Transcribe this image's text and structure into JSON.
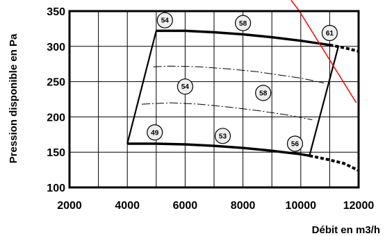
{
  "chart_data": {
    "type": "line",
    "xlabel": "Débit en m3/h",
    "ylabel": "Pression disponible en Pa",
    "xlim": [
      2000,
      12000
    ],
    "ylim": [
      100,
      350
    ],
    "xticks": [
      2000,
      4000,
      6000,
      8000,
      10000,
      12000
    ],
    "yticks": [
      100,
      150,
      200,
      250,
      300,
      350
    ],
    "grid": true,
    "x_grid_step": 1000,
    "y_grid_step": 50,
    "series": [
      {
        "style": "thick-solid",
        "points": [
          [
            5000,
            322
          ],
          [
            6000,
            322
          ],
          [
            7000,
            320
          ],
          [
            8000,
            317
          ],
          [
            9000,
            313
          ],
          [
            10000,
            308
          ],
          [
            11000,
            302
          ]
        ]
      },
      {
        "style": "thick-dotted",
        "points": [
          [
            11000,
            302
          ],
          [
            11500,
            298
          ],
          [
            12000,
            293
          ]
        ]
      },
      {
        "style": "dash-dot",
        "points": [
          [
            4900,
            271
          ],
          [
            5500,
            272
          ],
          [
            6500,
            271
          ],
          [
            7500,
            268
          ],
          [
            8500,
            264
          ],
          [
            9500,
            258
          ],
          [
            10000,
            255
          ],
          [
            10800,
            248
          ]
        ]
      },
      {
        "style": "dash-dot",
        "points": [
          [
            4500,
            218
          ],
          [
            5500,
            220
          ],
          [
            6500,
            218
          ],
          [
            7500,
            214
          ],
          [
            8500,
            209
          ],
          [
            9500,
            203
          ],
          [
            10400,
            196
          ]
        ]
      },
      {
        "style": "thick-solid",
        "points": [
          [
            4000,
            162
          ],
          [
            5000,
            162
          ],
          [
            6000,
            161
          ],
          [
            7000,
            159
          ],
          [
            8000,
            156
          ],
          [
            9000,
            152
          ],
          [
            10000,
            147
          ],
          [
            10300,
            145
          ]
        ]
      },
      {
        "style": "thick-dotted",
        "points": [
          [
            10300,
            145
          ],
          [
            11000,
            139
          ],
          [
            11500,
            134
          ],
          [
            12000,
            124
          ]
        ]
      },
      {
        "style": "thin-solid",
        "points": [
          [
            4000,
            162
          ],
          [
            5000,
            322
          ]
        ]
      },
      {
        "style": "thin-solid",
        "points": [
          [
            10300,
            145
          ],
          [
            11300,
            300
          ]
        ]
      }
    ],
    "reference_line": {
      "color": "#ff0000",
      "points": [
        [
          9950,
          350
        ],
        [
          11920,
          220
        ]
      ]
    },
    "bubbles": [
      {
        "label": "54",
        "x": 5300,
        "y": 337
      },
      {
        "label": "58",
        "x": 8000,
        "y": 333
      },
      {
        "label": "61",
        "x": 11000,
        "y": 319
      },
      {
        "label": "54",
        "x": 6000,
        "y": 243
      },
      {
        "label": "58",
        "x": 8700,
        "y": 234
      },
      {
        "label": "49",
        "x": 4950,
        "y": 178
      },
      {
        "label": "53",
        "x": 7300,
        "y": 173
      },
      {
        "label": "56",
        "x": 9800,
        "y": 162
      }
    ],
    "colors": {
      "curve": "#000000",
      "grid": "#000000",
      "bubble_fill": "#eeeeee",
      "reference": "#ff0000"
    }
  }
}
